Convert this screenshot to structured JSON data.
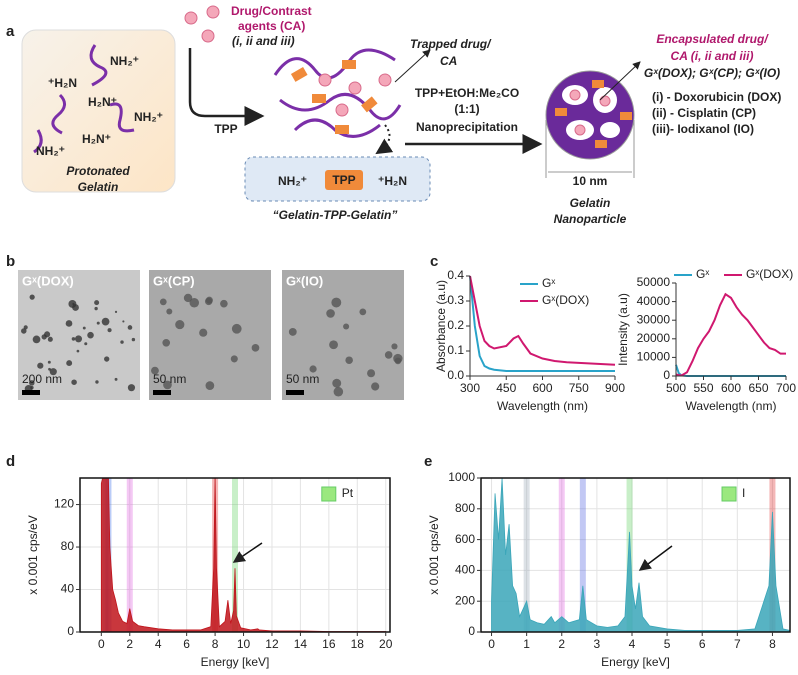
{
  "panel_labels": [
    "a",
    "b",
    "c",
    "d",
    "e"
  ],
  "diagram": {
    "agents": [
      "Drug/Contrast",
      "agents (CA)",
      "(i, ii and iii)"
    ],
    "amines": [
      "NH₂⁺",
      "⁺H₂N",
      "H₂N⁺",
      "NH₂⁺",
      "H₂N⁺",
      "NH₂⁺"
    ],
    "protonated": [
      "Protonated",
      "Gelatin"
    ],
    "tpp_arrow": "TPP",
    "trapped": [
      "Trapped drug/",
      "CA"
    ],
    "conditions": [
      "TPP+EtOH:Me₂CO",
      "(1:1)",
      "Nanoprecipitation"
    ],
    "linker": {
      "left": "NH₂⁺",
      "box": "TPP",
      "right": "⁺H₂N",
      "caption": "“Gelatin-TPP-Gelatin”"
    },
    "size": "10 nm",
    "nanoparticle": [
      "Gelatin",
      "Nanoparticle"
    ],
    "encapsulated": [
      "Encapsulated drug/",
      "CA (i, ii and iii)",
      "Gˣ(DOX); Gˣ(CP); Gˣ(IO)"
    ],
    "legend": [
      "(i) - Doxorubicin (DOX)",
      "(ii) - Cisplatin (CP)",
      "(iii)- Iodixanol (IO)"
    ]
  },
  "tem": [
    {
      "label": "Gˣ(DOX)",
      "scale": "200 nm"
    },
    {
      "label": "Gˣ(CP)",
      "scale": "50 nm"
    },
    {
      "label": "Gˣ(IO)",
      "scale": "50 nm"
    }
  ],
  "chart_data": [
    {
      "type": "line",
      "xlabel": "Wavelength (nm)",
      "ylabel": "Absorbance (a.u)",
      "x": [
        300,
        320,
        340,
        360,
        380,
        400,
        450,
        480,
        500,
        520,
        550,
        600,
        650,
        700,
        800,
        900
      ],
      "series": [
        {
          "name": "Gˣ",
          "color": "#29a3c9",
          "values": [
            0.4,
            0.2,
            0.08,
            0.04,
            0.03,
            0.025,
            0.02,
            0.02,
            0.02,
            0.02,
            0.02,
            0.02,
            0.02,
            0.02,
            0.02,
            0.02
          ]
        },
        {
          "name": "Gˣ(DOX)",
          "color": "#d0186f",
          "values": [
            0.4,
            0.3,
            0.2,
            0.14,
            0.12,
            0.11,
            0.12,
            0.15,
            0.16,
            0.13,
            0.09,
            0.07,
            0.06,
            0.055,
            0.05,
            0.045
          ]
        }
      ],
      "xlim": [
        300,
        900
      ],
      "xticks": [
        300,
        450,
        600,
        750,
        900
      ],
      "ylim": [
        0,
        0.4
      ],
      "yticks": [
        {
          "value": 0,
          "label": "0.0"
        },
        0.1,
        0.2,
        0.3,
        0.4
      ],
      "legend": "upper right",
      "grid": false
    },
    {
      "type": "line",
      "xlabel": "Wavelength (nm)",
      "ylabel": "Intensity (a.u)",
      "x": [
        500,
        505,
        510,
        520,
        530,
        540,
        550,
        560,
        570,
        580,
        590,
        600,
        610,
        620,
        630,
        640,
        650,
        660,
        670,
        680,
        690,
        700
      ],
      "series": [
        {
          "name": "Gˣ",
          "color": "#29a3c9",
          "values": [
            6000,
            1500,
            300,
            0,
            0,
            0,
            0,
            0,
            0,
            0,
            0,
            0,
            0,
            0,
            0,
            0,
            0,
            0,
            0,
            0,
            0,
            0
          ]
        },
        {
          "name": "Gˣ(DOX)",
          "color": "#d0186f",
          "values": [
            800,
            500,
            300,
            2000,
            8000,
            15000,
            20000,
            24000,
            30000,
            38000,
            44000,
            42000,
            37000,
            33000,
            30000,
            26000,
            22000,
            18000,
            15000,
            14000,
            12000,
            12000
          ]
        }
      ],
      "xlim": [
        500,
        700
      ],
      "xticks": [
        500,
        550,
        600,
        650,
        700
      ],
      "ylim": [
        0,
        50000
      ],
      "yticks": [
        0,
        10000,
        20000,
        30000,
        40000,
        50000
      ],
      "legend": "top",
      "grid": false
    },
    {
      "type": "area",
      "xlabel": "Energy [keV]",
      "ylabel": "x 0.001 cps/eV",
      "x": [
        0,
        0.1,
        0.2,
        0.3,
        0.4,
        0.5,
        0.6,
        0.8,
        1.0,
        1.2,
        1.5,
        1.8,
        2.0,
        2.2,
        2.6,
        3,
        4,
        5,
        6,
        7,
        7.7,
        7.9,
        8.0,
        8.1,
        8.3,
        8.7,
        8.9,
        9.1,
        9.3,
        9.4,
        9.5,
        9.8,
        10.5,
        11.0,
        11.1,
        12,
        14,
        16,
        18,
        20
      ],
      "series": [
        {
          "color": "#c0141b",
          "values": [
            140,
            145,
            145,
            145,
            145,
            145,
            80,
            40,
            30,
            18,
            10,
            8,
            22,
            10,
            6,
            5,
            3,
            2,
            2,
            2,
            5,
            60,
            145,
            60,
            5,
            10,
            30,
            8,
            20,
            60,
            15,
            4,
            2,
            3,
            2,
            1,
            1,
            0.5,
            0.5,
            0.5
          ]
        }
      ],
      "element_lines": [
        {
          "x": 0.3,
          "color": "#4aa0e8"
        },
        {
          "x": 0.5,
          "color": "#3a6ee8"
        },
        {
          "x": 2.0,
          "color": "#e060e0"
        },
        {
          "x": 8.0,
          "color": "#e03030"
        },
        {
          "x": 9.4,
          "color": "#60d060"
        }
      ],
      "legend_entry": {
        "name": "Pt",
        "color": "#9be87f"
      },
      "xlim": [
        -1.5,
        20.3
      ],
      "xticks": [
        0,
        2,
        4,
        6,
        8,
        10,
        12,
        14,
        16,
        18,
        20
      ],
      "ylim": [
        0,
        145
      ],
      "yticks": [
        0,
        40,
        80,
        120
      ],
      "grid": true
    },
    {
      "type": "area",
      "xlabel": "Energy [keV]",
      "ylabel": "x 0.001 cps/eV",
      "x": [
        0,
        0.1,
        0.2,
        0.3,
        0.4,
        0.5,
        0.6,
        0.7,
        0.8,
        0.9,
        1.0,
        1.1,
        1.3,
        1.5,
        1.7,
        1.8,
        2.0,
        2.2,
        2.5,
        2.6,
        2.7,
        3.0,
        3.3,
        3.6,
        3.8,
        3.93,
        4.0,
        4.1,
        4.2,
        4.3,
        4.5,
        5,
        5.5,
        6,
        6.5,
        7,
        7.5,
        7.9,
        8.0,
        8.1,
        8.3,
        8.5
      ],
      "series": [
        {
          "color": "#3aa6b9",
          "values": [
            200,
            900,
            600,
            1000,
            500,
            700,
            300,
            250,
            100,
            150,
            200,
            80,
            60,
            50,
            100,
            60,
            100,
            60,
            80,
            300,
            80,
            40,
            30,
            40,
            100,
            650,
            300,
            150,
            320,
            100,
            40,
            20,
            10,
            10,
            10,
            10,
            20,
            300,
            780,
            300,
            20,
            10
          ]
        }
      ],
      "element_lines": [
        {
          "x": 1.0,
          "color": "#9aa8b8"
        },
        {
          "x": 2.0,
          "color": "#e060e0"
        },
        {
          "x": 2.6,
          "color": "#5060e0"
        },
        {
          "x": 3.93,
          "color": "#60d060"
        },
        {
          "x": 8.0,
          "color": "#e03030"
        }
      ],
      "legend_entry": {
        "name": "I",
        "color": "#9be87f"
      },
      "xlim": [
        -0.3,
        8.5
      ],
      "xticks": [
        0,
        1,
        2,
        3,
        4,
        5,
        6,
        7,
        8
      ],
      "ylim": [
        0,
        1000
      ],
      "yticks": [
        0,
        200,
        400,
        600,
        800,
        1000
      ],
      "grid": true
    }
  ]
}
